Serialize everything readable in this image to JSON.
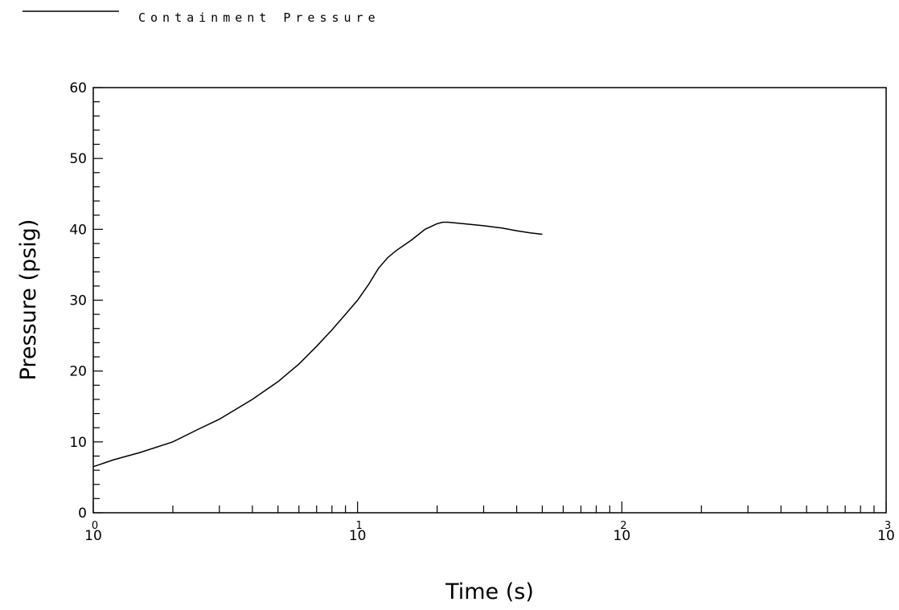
{
  "chart_data": {
    "type": "line",
    "xscale": "log",
    "xlabel": "Time (s)",
    "ylabel": "Pressure (psig)",
    "xlim": [
      1,
      1000
    ],
    "ylim": [
      0,
      60
    ],
    "x_tick_bases": [
      "10",
      "10",
      "10",
      "10"
    ],
    "x_tick_exponents": [
      "0",
      "1",
      "2",
      "3"
    ],
    "y_ticks": [
      "0",
      "10",
      "20",
      "30",
      "40",
      "50",
      "60"
    ],
    "legend_position": "top-left",
    "grid": false,
    "line_color": "#000000",
    "series": [
      {
        "name": "Containment Pressure",
        "x": [
          1.0,
          1.2,
          1.5,
          2.0,
          2.5,
          3.0,
          4.0,
          5.0,
          6.0,
          7.0,
          8.0,
          9.0,
          10.0,
          11.0,
          12.0,
          13.0,
          14.0,
          16.0,
          18.0,
          20.0,
          21.0,
          22.0,
          25.0,
          30.0,
          35.0,
          40.0,
          45.0,
          50.0
        ],
        "y": [
          6.5,
          7.5,
          8.5,
          10.0,
          11.8,
          13.2,
          16.0,
          18.5,
          21.0,
          23.5,
          25.8,
          28.0,
          30.0,
          32.2,
          34.5,
          36.0,
          37.0,
          38.5,
          40.0,
          40.8,
          41.0,
          41.0,
          40.8,
          40.5,
          40.2,
          39.8,
          39.5,
          39.3
        ]
      }
    ]
  }
}
